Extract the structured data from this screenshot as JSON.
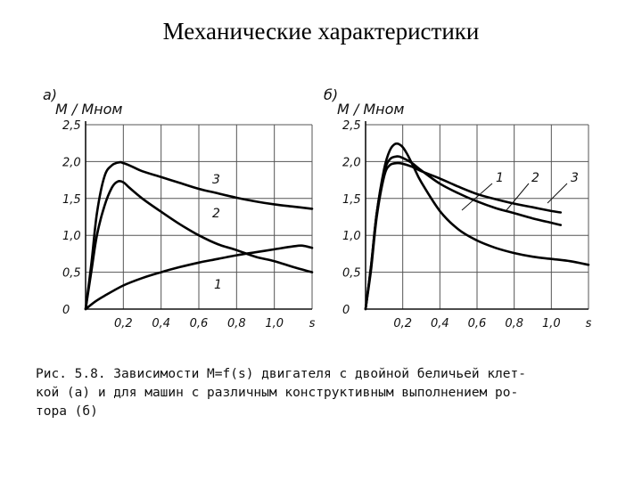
{
  "title": "Механические характеристики",
  "caption": {
    "lines": [
      "Рис. 5.8. Зависимости M=f(s) двигателя с двойной беличьей клет-",
      "кой (а) и для машин с различным конструктивным выполнением ро-",
      "тора (б)"
    ]
  },
  "chart_data": [
    {
      "type": "line",
      "panel_label": "а)",
      "ylabel": "M / Mном",
      "xlabel": "s",
      "xlim": [
        0,
        1.2
      ],
      "ylim": [
        0,
        2.5
      ],
      "xticks": [
        "0,2",
        "0,4",
        "0,6",
        "0,8",
        "1,0"
      ],
      "yticks": [
        "0",
        "0,5",
        "1,0",
        "1,5",
        "2,0",
        "2,5"
      ],
      "grid": true,
      "series": [
        {
          "name": "1",
          "x": [
            0,
            0.05,
            0.1,
            0.2,
            0.3,
            0.4,
            0.5,
            0.6,
            0.7,
            0.8,
            0.9,
            1.0,
            1.1,
            1.15,
            1.2
          ],
          "y": [
            0,
            0.1,
            0.18,
            0.32,
            0.42,
            0.5,
            0.57,
            0.63,
            0.68,
            0.73,
            0.77,
            0.81,
            0.85,
            0.86,
            0.83
          ]
        },
        {
          "name": "2",
          "x": [
            0,
            0.03,
            0.06,
            0.1,
            0.14,
            0.17,
            0.2,
            0.23,
            0.3,
            0.4,
            0.5,
            0.6,
            0.7,
            0.8,
            0.9,
            1.0,
            1.1,
            1.2
          ],
          "y": [
            0,
            0.5,
            1.0,
            1.4,
            1.65,
            1.73,
            1.72,
            1.65,
            1.5,
            1.32,
            1.15,
            1.0,
            0.88,
            0.8,
            0.71,
            0.65,
            0.57,
            0.5
          ]
        },
        {
          "name": "3",
          "x": [
            0,
            0.03,
            0.06,
            0.1,
            0.14,
            0.18,
            0.2,
            0.24,
            0.3,
            0.4,
            0.5,
            0.6,
            0.7,
            0.8,
            0.9,
            1.0,
            1.1,
            1.2
          ],
          "y": [
            0,
            0.6,
            1.3,
            1.8,
            1.95,
            1.99,
            1.98,
            1.94,
            1.87,
            1.79,
            1.71,
            1.63,
            1.57,
            1.51,
            1.46,
            1.42,
            1.39,
            1.36
          ]
        }
      ]
    },
    {
      "type": "line",
      "panel_label": "б)",
      "ylabel": "M / Mном",
      "xlabel": "s",
      "xlim": [
        0,
        1.2
      ],
      "ylim": [
        0,
        2.5
      ],
      "xticks": [
        "0,2",
        "0,4",
        "0,6",
        "0,8",
        "1,0"
      ],
      "yticks": [
        "0",
        "0,5",
        "1,0",
        "1,5",
        "2,0",
        "2,5"
      ],
      "grid": true,
      "series": [
        {
          "name": "1",
          "x": [
            0,
            0.03,
            0.06,
            0.1,
            0.13,
            0.16,
            0.19,
            0.22,
            0.26,
            0.3,
            0.4,
            0.5,
            0.6,
            0.7,
            0.8,
            0.9,
            1.0,
            1.1,
            1.2
          ],
          "y": [
            0,
            0.6,
            1.3,
            1.9,
            2.15,
            2.24,
            2.22,
            2.12,
            1.92,
            1.72,
            1.33,
            1.08,
            0.93,
            0.83,
            0.76,
            0.71,
            0.68,
            0.65,
            0.6
          ]
        },
        {
          "name": "2",
          "x": [
            0,
            0.03,
            0.06,
            0.1,
            0.13,
            0.17,
            0.2,
            0.25,
            0.3,
            0.4,
            0.5,
            0.6,
            0.7,
            0.8,
            0.9,
            1.0,
            1.05
          ],
          "y": [
            0,
            0.6,
            1.3,
            1.85,
            2.03,
            2.07,
            2.05,
            1.98,
            1.88,
            1.7,
            1.57,
            1.46,
            1.37,
            1.3,
            1.23,
            1.17,
            1.14
          ]
        },
        {
          "name": "3",
          "x": [
            0,
            0.03,
            0.06,
            0.1,
            0.13,
            0.17,
            0.2,
            0.25,
            0.3,
            0.4,
            0.5,
            0.6,
            0.7,
            0.8,
            0.9,
            1.0,
            1.05
          ],
          "y": [
            0,
            0.55,
            1.25,
            1.8,
            1.95,
            1.98,
            1.97,
            1.93,
            1.87,
            1.77,
            1.66,
            1.56,
            1.49,
            1.43,
            1.38,
            1.33,
            1.31
          ]
        }
      ]
    }
  ]
}
